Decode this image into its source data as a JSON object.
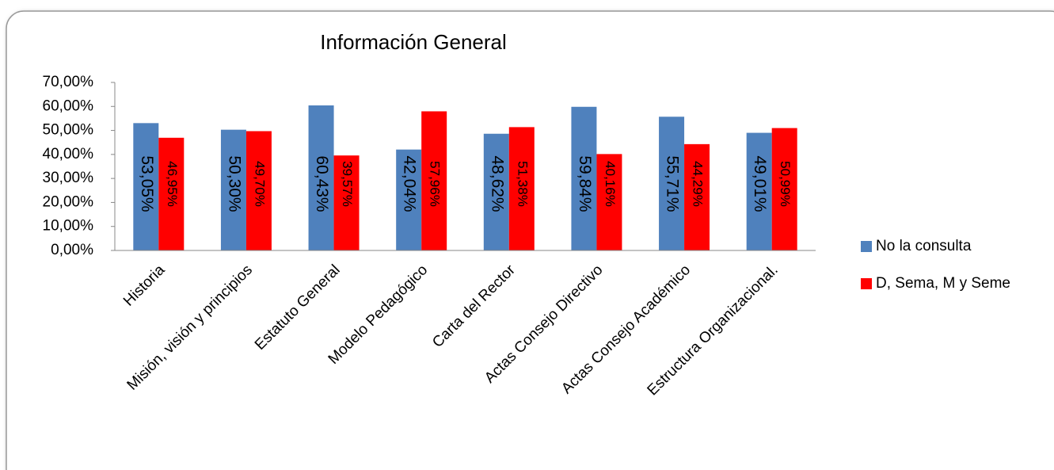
{
  "chart_data": {
    "type": "bar",
    "title": "Información General",
    "categories": [
      "Historia",
      "Misión, visión y principios",
      "Estatuto General",
      "Modelo Pedagógico",
      "Carta del Rector",
      "Actas Consejo Directivo",
      "Actas Consejo Académico",
      "Estructura Organizacional."
    ],
    "series": [
      {
        "name": "No la consulta",
        "color": "#4f81bd",
        "values": [
          53.05,
          50.3,
          60.43,
          42.04,
          48.62,
          59.84,
          55.71,
          49.01
        ],
        "value_labels": [
          "53,05%",
          "50,30%",
          "60,43%",
          "42,04%",
          "48,62%",
          "59,84%",
          "55,71%",
          "49,01%"
        ]
      },
      {
        "name": "D, Sema, M y Seme",
        "color": "#ff0000",
        "values": [
          46.95,
          49.7,
          39.57,
          57.96,
          51.38,
          40.16,
          44.29,
          50.99
        ],
        "value_labels": [
          "46,95%",
          "49,70%",
          "39,57%",
          "57,96%",
          "51,38%",
          "40,16%",
          "44,29%",
          "50,99%"
        ]
      }
    ],
    "ylim": [
      0,
      70
    ],
    "yticks": [
      {
        "value": 0,
        "label": "0,00%"
      },
      {
        "value": 10,
        "label": "10,00%"
      },
      {
        "value": 20,
        "label": "20,00%"
      },
      {
        "value": 30,
        "label": "30,00%"
      },
      {
        "value": 40,
        "label": "40,00%"
      },
      {
        "value": 50,
        "label": "50,00%"
      },
      {
        "value": 60,
        "label": "60,00%"
      },
      {
        "value": 70,
        "label": "70,00%"
      }
    ],
    "grid": false,
    "legend": "right"
  }
}
